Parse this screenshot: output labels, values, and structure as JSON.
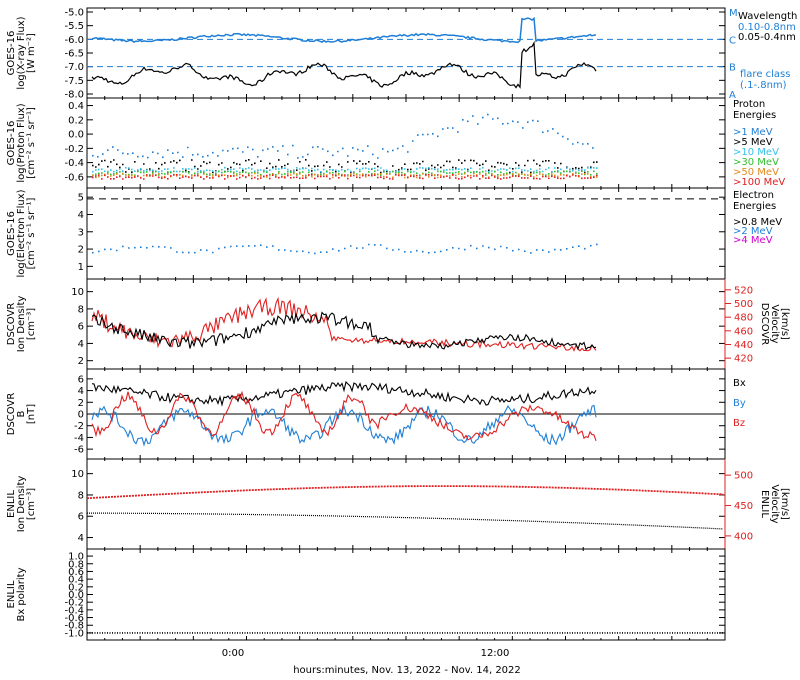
{
  "footer": {
    "xlabel": "hours:minutes, Nov. 13, 2022 - Nov. 14, 2022"
  },
  "x_ticks": [
    "0:00",
    "12:00"
  ],
  "colors": {
    "black": "#000000",
    "blue": "#1f7fd6",
    "cyan": "#35c1e6",
    "green": "#2fbf2f",
    "orange": "#e08a1e",
    "red": "#e02020",
    "magenta": "#d000d0"
  },
  "chart_data": [
    {
      "id": "xray",
      "type": "line",
      "ylabel": [
        "GOES-16",
        "log(X-ray Flux)",
        "[W m⁻²]"
      ],
      "yticks": [
        "-5.0",
        "-5.5",
        "-6.0",
        "-6.5",
        "-7.0",
        "-7.5",
        "-8.0"
      ],
      "ylim": [
        -8.0,
        -5.0
      ],
      "flare_levels": [
        {
          "label": "M",
          "value": -5.0
        },
        {
          "label": "C",
          "value": -6.0
        },
        {
          "label": "B",
          "value": -7.0
        },
        {
          "label": "A",
          "value": -8.0
        }
      ],
      "legend_title": "Wavelength",
      "series": [
        {
          "name": "0.10-0.8nm",
          "color": "#1f7fd6",
          "level": -5.95
        },
        {
          "name": "0.05-0.4nm",
          "color": "#000000",
          "level": -7.3
        }
      ],
      "note": [
        "flare class",
        "(.1-.8nm)"
      ]
    },
    {
      "id": "proton",
      "type": "scatter",
      "ylabel": [
        "GOES-16",
        "log(Proton Flux)",
        "[cm⁻² s⁻¹ sr⁻¹]"
      ],
      "yticks": [
        "0.4",
        "0.2",
        "0.0",
        "-0.2",
        "-0.4",
        "-0.6"
      ],
      "ylim": [
        -0.7,
        0.45
      ],
      "legend_title": [
        "Proton",
        "Energies"
      ],
      "series": [
        {
          "name": ">1 MeV",
          "color": "#1f7fd6"
        },
        {
          "name": ">5 MeV",
          "color": "#000000"
        },
        {
          "name": ">10 MeV",
          "color": "#35c1e6"
        },
        {
          "name": ">30 MeV",
          "color": "#2fbf2f"
        },
        {
          "name": ">50 MeV",
          "color": "#e08a1e"
        },
        {
          "name": ">100 MeV",
          "color": "#e02020"
        }
      ]
    },
    {
      "id": "electron",
      "type": "scatter",
      "ylabel": [
        "GOES-16",
        "log(Electron Flux)",
        "[cm⁻² s⁻¹ sr⁻¹]"
      ],
      "yticks": [
        "5",
        "4",
        "3",
        "2",
        "1"
      ],
      "ylim": [
        0.5,
        5.3
      ],
      "threshold": 4.9,
      "legend_title": [
        "Electron",
        "Energies"
      ],
      "series": [
        {
          "name": ">0.8 MeV",
          "color": "#000000"
        },
        {
          "name": ">2 MeV",
          "color": "#1f7fd6"
        },
        {
          "name": ">4 MeV",
          "color": "#d000d0"
        }
      ]
    },
    {
      "id": "dscovr_density",
      "type": "line",
      "ylabel": [
        "DSCOVR",
        "Ion Density",
        "[cm⁻³]"
      ],
      "yticks": [
        "10",
        "8",
        "6",
        "4",
        "2"
      ],
      "ylim": [
        1.5,
        11
      ],
      "ylabel_right": [
        "DSCOVR",
        "Velocity",
        "[km/s]"
      ],
      "yticks_right": [
        "520",
        "500",
        "480",
        "460",
        "440",
        "420"
      ],
      "ylim_right": [
        410,
        530
      ]
    },
    {
      "id": "dscovr_b",
      "type": "line",
      "ylabel": [
        "DSCOVR",
        "B",
        "[nT]"
      ],
      "yticks": [
        "6",
        "4",
        "2",
        "0",
        "-2",
        "-4",
        "-6"
      ],
      "ylim": [
        -7,
        7
      ],
      "series": [
        {
          "name": "Bx",
          "color": "#000000"
        },
        {
          "name": "By",
          "color": "#1f7fd6"
        },
        {
          "name": "Bz",
          "color": "#e02020"
        }
      ]
    },
    {
      "id": "enlil_density",
      "type": "line",
      "ylabel": [
        "ENLIL",
        "Ion Density",
        "[cm⁻³]"
      ],
      "yticks": [
        "10",
        "8",
        "6",
        "4"
      ],
      "ylim": [
        3.3,
        11
      ],
      "ylabel_right": [
        "ENLIL",
        "Velocity",
        "[km/s]"
      ],
      "yticks_right": [
        "500",
        "450",
        "400"
      ],
      "ylim_right": [
        385,
        520
      ]
    },
    {
      "id": "enlil_polarity",
      "type": "line",
      "ylabel": [
        "ENLIL",
        "Bx polarity"
      ],
      "yticks": [
        "1.0",
        "0.8",
        "0.6",
        "0.4",
        "0.2",
        "0.0",
        "-0.2",
        "-0.4",
        "-0.6",
        "-0.8",
        "-1.0"
      ],
      "ylim": [
        -1.08,
        1.08
      ],
      "value": -1.0
    }
  ]
}
